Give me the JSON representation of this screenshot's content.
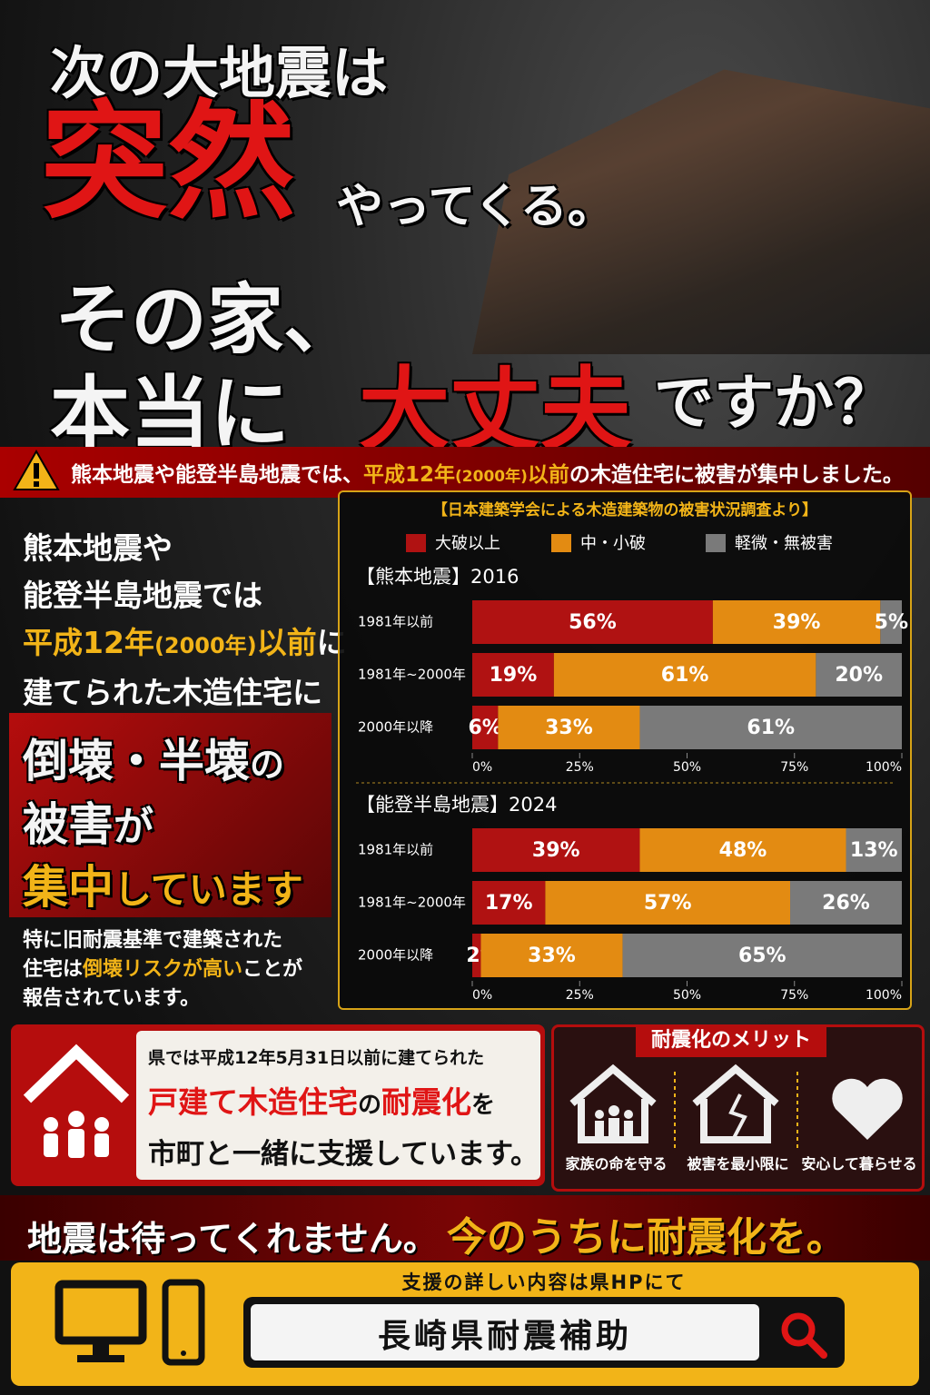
{
  "headline": {
    "line1": "次の大地震は",
    "emph1": "突然",
    "line2": "やってくる。",
    "line3": "その家、",
    "line4a": "本当に",
    "emph2": "大丈夫",
    "line4b": "ですか？"
  },
  "alert": {
    "a": "熊本地震や能登半島地震では、",
    "b": "平成12年",
    "c": "(2000年)",
    "d": "以前",
    "e": "の木造住宅に被害が集中しました。"
  },
  "left": {
    "l1": "熊本地震や",
    "l2": "能登半島地震では",
    "l3a": "平成12年",
    "l3b": "(2000年)",
    "l3c": "以前",
    "l3d": "に",
    "l4": "建てられた木造住宅に",
    "big1": "倒壊・半壊",
    "big1b": "の",
    "big2": "被害",
    "big2b": "が",
    "big3a": "集中",
    "big3b": "しています",
    "note1": "特に旧耐震基準で建築された",
    "note2a": "住宅は",
    "note2b": "倒壊リスクが高い",
    "note2c": "ことが",
    "note3": "報告されています。"
  },
  "survey_title": "【日本建築学会による木造建築物の被害状況調査より】",
  "chart_data": [
    {
      "type": "bar",
      "stacked": true,
      "orientation": "horizontal",
      "title": "【熊本地震】2016",
      "categories": [
        "1981年以前",
        "1981年~2000年",
        "2000年以降"
      ],
      "series": [
        {
          "name": "大破以上",
          "color": "#b01212",
          "values": [
            56,
            19,
            6
          ],
          "value_labels": [
            "56%",
            "19%",
            "6%"
          ]
        },
        {
          "name": "中・小破",
          "color": "#e38b12",
          "values": [
            39,
            61,
            33
          ],
          "value_labels": [
            "39%",
            "61%",
            "33%"
          ]
        },
        {
          "name": "軽微・無被害",
          "color": "#7a7a7a",
          "values": [
            5,
            20,
            61
          ],
          "value_labels": [
            "5%",
            "20%",
            "61%"
          ]
        }
      ],
      "xlim": [
        0,
        100
      ],
      "xticks": [
        {
          "value": 0,
          "label": "0%"
        },
        {
          "value": 25,
          "label": "25%"
        },
        {
          "value": 50,
          "label": "50%"
        },
        {
          "value": 75,
          "label": "75%"
        },
        {
          "value": 100,
          "label": "100%"
        }
      ]
    },
    {
      "type": "bar",
      "stacked": true,
      "orientation": "horizontal",
      "title": "【能登半島地震】2024",
      "categories": [
        "1981年以前",
        "1981年~2000年",
        "2000年以降"
      ],
      "series": [
        {
          "name": "大破以上",
          "color": "#b01212",
          "values": [
            39,
            17,
            2
          ],
          "value_labels": [
            "39%",
            "17%",
            "2%"
          ]
        },
        {
          "name": "中・小破",
          "color": "#e38b12",
          "values": [
            48,
            57,
            33
          ],
          "value_labels": [
            "48%",
            "57%",
            "33%"
          ]
        },
        {
          "name": "軽微・無被害",
          "color": "#7a7a7a",
          "values": [
            13,
            26,
            65
          ],
          "value_labels": [
            "13%",
            "26%",
            "65%"
          ]
        }
      ],
      "xlim": [
        0,
        100
      ],
      "xticks": [
        {
          "value": 0,
          "label": "0%"
        },
        {
          "value": 25,
          "label": "25%"
        },
        {
          "value": 50,
          "label": "50%"
        },
        {
          "value": 75,
          "label": "75%"
        },
        {
          "value": 100,
          "label": "100%"
        }
      ]
    }
  ],
  "support": {
    "s1": "県では平成12年5月31日以前に建てられた",
    "s2a": "戸建て木造住宅",
    "s2b": "の",
    "s2c": "耐震化",
    "s2d": "を",
    "s3": "市町と一緒に支援しています。"
  },
  "merit": {
    "title": "耐震化のメリット",
    "items": [
      "家族の命を守る",
      "被害を最小限に",
      "安心して暮らせる"
    ]
  },
  "bottom": {
    "a": "地震は待ってくれません。",
    "b": "今のうちに耐震化を。"
  },
  "search": {
    "caption": "支援の詳しい内容は県HPにて",
    "query": "長崎県耐震補助"
  }
}
